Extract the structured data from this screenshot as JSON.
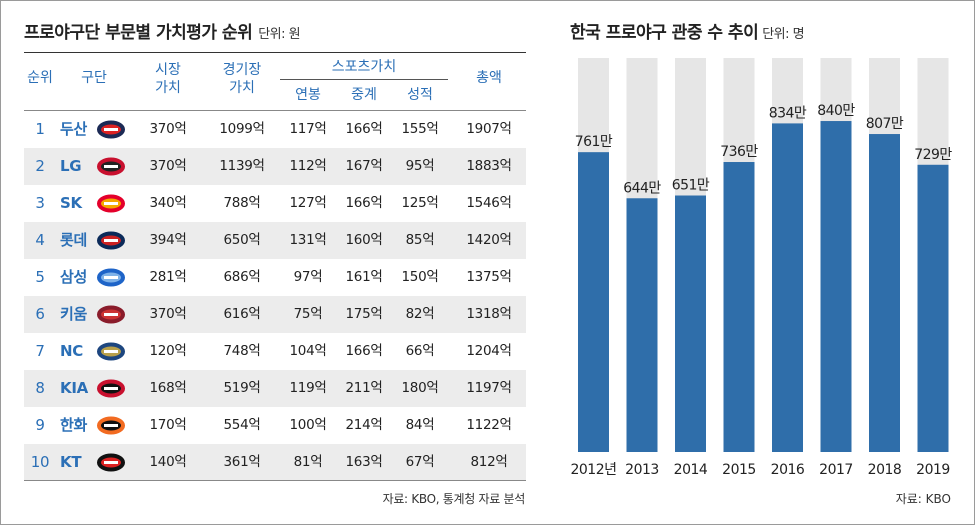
{
  "table": {
    "title": "프로야구단 부문별 가치평가 순위",
    "unit": "단위: 원",
    "headers": {
      "rank": "순위",
      "team": "구단",
      "market_value_1": "시장",
      "market_value_2": "가치",
      "game_value_1": "경기장",
      "game_value_2": "가치",
      "sports_value": "스포츠가치",
      "salary": "연봉",
      "broadcast": "중계",
      "performance": "성적",
      "total": "총액"
    },
    "rows": [
      {
        "rank": "1",
        "team": "두산",
        "market": "370억",
        "stadium": "1099억",
        "salary": "117억",
        "broadcast": "166억",
        "performance": "155억",
        "total": "1907억",
        "logo": "bears-logo-icon"
      },
      {
        "rank": "2",
        "team": "LG",
        "market": "370억",
        "stadium": "1139억",
        "salary": "112억",
        "broadcast": "167억",
        "performance": "95억",
        "total": "1883억",
        "logo": "twins-logo-icon"
      },
      {
        "rank": "3",
        "team": "SK",
        "market": "340억",
        "stadium": "788억",
        "salary": "127억",
        "broadcast": "166억",
        "performance": "125억",
        "total": "1546억",
        "logo": "wyverns-logo-icon"
      },
      {
        "rank": "4",
        "team": "롯데",
        "market": "394억",
        "stadium": "650억",
        "salary": "131억",
        "broadcast": "160억",
        "performance": "85억",
        "total": "1420억",
        "logo": "giants-logo-icon"
      },
      {
        "rank": "5",
        "team": "삼성",
        "market": "281억",
        "stadium": "686억",
        "salary": "97억",
        "broadcast": "161억",
        "performance": "150억",
        "total": "1375억",
        "logo": "lions-logo-icon"
      },
      {
        "rank": "6",
        "team": "키움",
        "market": "370억",
        "stadium": "616억",
        "salary": "75억",
        "broadcast": "175억",
        "performance": "82억",
        "total": "1318억",
        "logo": "heroes-logo-icon"
      },
      {
        "rank": "7",
        "team": "NC",
        "market": "120억",
        "stadium": "748억",
        "salary": "104억",
        "broadcast": "166억",
        "performance": "66억",
        "total": "1204억",
        "logo": "dinos-logo-icon"
      },
      {
        "rank": "8",
        "team": "KIA",
        "market": "168억",
        "stadium": "519억",
        "salary": "119억",
        "broadcast": "211억",
        "performance": "180억",
        "total": "1197억",
        "logo": "tigers-logo-icon"
      },
      {
        "rank": "9",
        "team": "한화",
        "market": "170억",
        "stadium": "554억",
        "salary": "100억",
        "broadcast": "214억",
        "performance": "84억",
        "total": "1122억",
        "logo": "eagles-logo-icon"
      },
      {
        "rank": "10",
        "team": "KT",
        "market": "140억",
        "stadium": "361억",
        "salary": "81억",
        "broadcast": "163억",
        "performance": "67억",
        "total": "812억",
        "logo": "wiz-logo-icon"
      }
    ],
    "source": "자료: KBO, 통계청 자료 분석"
  },
  "chart_data": {
    "type": "bar",
    "title": "한국 프로야구 관중 수 추이",
    "unit": "단위: 명",
    "categories": [
      "2012년",
      "2013",
      "2014",
      "2015",
      "2016",
      "2017",
      "2018",
      "2019"
    ],
    "values": [
      761,
      644,
      651,
      736,
      834,
      840,
      807,
      729
    ],
    "value_labels": [
      "761만",
      "644만",
      "651만",
      "736만",
      "834만",
      "840만",
      "807만",
      "729만"
    ],
    "ylim": [
      0,
      1000
    ],
    "bar_color": "#2f6eaa",
    "track_color": "#e6e6e6",
    "source": "자료: KBO"
  }
}
